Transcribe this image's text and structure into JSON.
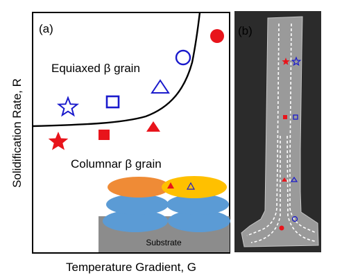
{
  "panel_a": {
    "label": "(a)",
    "y_axis_label": "Solidification Rate, R",
    "x_axis_label": "Temperature Gradient, G",
    "region_upper": "Equiaxed β grain",
    "region_lower": "Columnar β grain",
    "substrate_label": "Substrate",
    "colors": {
      "marker_red": "#e8141b",
      "marker_blue": "#1a1acc",
      "melt_orange": "#ef8b36",
      "melt_yellow": "#ffc000",
      "layer_blue": "#5b9bd5",
      "substrate_gray": "#8c8c8c"
    }
  },
  "panel_b": {
    "label": "(b)",
    "colors": {
      "background": "#2b2b2b",
      "specimen": "#9a9a9a",
      "dashes": "#ffffff"
    }
  }
}
